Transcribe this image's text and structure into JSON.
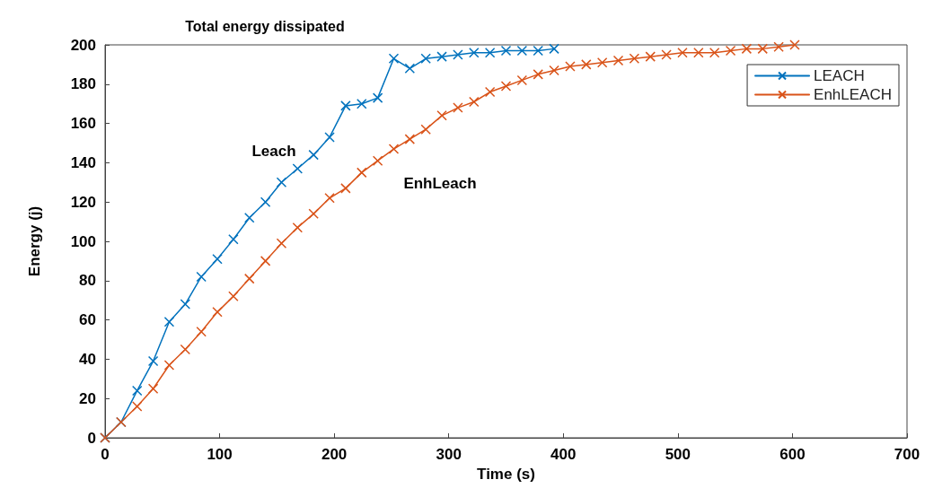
{
  "chart_data": {
    "type": "line",
    "title": "Total energy dissipated",
    "xlabel": "Time (s)",
    "ylabel": "Energy (j)",
    "xlim": [
      0,
      700
    ],
    "xticks": [
      0,
      100,
      200,
      300,
      400,
      500,
      600,
      700
    ],
    "ylim": [
      0,
      200
    ],
    "yticks": [
      0,
      20,
      40,
      60,
      80,
      100,
      120,
      140,
      160,
      180,
      200
    ],
    "grid": false,
    "legend": "top right",
    "marker": "cross",
    "line_style": "solid",
    "annotations": [
      "Leach",
      "EnhLeach"
    ],
    "series": [
      {
        "name": "LEACH",
        "color": "#0072bd",
        "x": [
          0,
          14,
          28,
          42,
          56,
          70,
          84,
          98,
          112,
          126,
          140,
          154,
          168,
          182,
          196,
          210,
          224,
          238,
          252,
          266,
          280,
          294,
          308,
          322,
          336,
          350,
          364,
          378,
          392
        ],
        "values": [
          0,
          8,
          24,
          39,
          59,
          68,
          82,
          91,
          101,
          112,
          120,
          130,
          137,
          144,
          153,
          169,
          170,
          173,
          193,
          188,
          193,
          194,
          195,
          196,
          196,
          197,
          197,
          197,
          198
        ]
      },
      {
        "name": "EnhLEACH",
        "color": "#d95319",
        "x": [
          0,
          14,
          28,
          42,
          56,
          70,
          84,
          98,
          112,
          126,
          140,
          154,
          168,
          182,
          196,
          210,
          224,
          238,
          252,
          266,
          280,
          294,
          308,
          322,
          336,
          350,
          364,
          378,
          392,
          406,
          420,
          434,
          448,
          462,
          476,
          490,
          504,
          518,
          532,
          546,
          560,
          574,
          588,
          602
        ],
        "values": [
          0,
          8,
          16,
          25,
          37,
          45,
          54,
          64,
          72,
          81,
          90,
          99,
          107,
          114,
          122,
          127,
          135,
          141,
          147,
          152,
          157,
          164,
          168,
          171,
          176,
          179,
          182,
          185,
          187,
          189,
          190,
          191,
          192,
          193,
          194,
          195,
          196,
          196,
          196,
          197,
          198,
          198,
          199,
          200
        ]
      }
    ]
  }
}
